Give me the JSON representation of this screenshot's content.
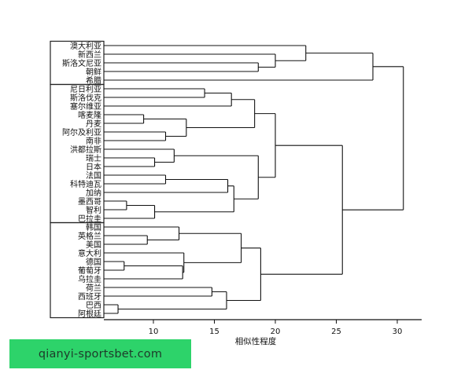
{
  "chart_data": {
    "type": "dendrogram",
    "xlabel": "相似性程度",
    "x_ticks": [
      10,
      15,
      20,
      25,
      30
    ],
    "xlim": [
      6,
      32
    ],
    "leaves": [
      "澳大利亚",
      "新西兰",
      "斯洛文尼亚",
      "朝鲜",
      "希腊",
      "尼日利亚",
      "斯洛伐克",
      "塞尔维亚",
      "喀麦隆",
      "丹麦",
      "阿尔及利亚",
      "南非",
      "洪都拉斯",
      "瑞士",
      "日本",
      "法国",
      "科特迪瓦",
      "加纳",
      "墨西哥",
      "智利",
      "巴拉圭",
      "韩国",
      "英格兰",
      "美国",
      "意大利",
      "德国",
      "葡萄牙",
      "乌拉圭",
      "荷兰",
      "西班牙",
      "巴西",
      "阿根廷"
    ],
    "merges": [
      {
        "id": "m1",
        "a": "墨西哥",
        "b": "智利",
        "height": 7.8
      },
      {
        "id": "m2",
        "a": "巴西",
        "b": "阿根廷",
        "height": 7.1
      },
      {
        "id": "m3",
        "a": "德国",
        "b": "葡萄牙",
        "height": 7.6
      },
      {
        "id": "m4",
        "a": "喀麦隆",
        "b": "丹麦",
        "height": 9.2
      },
      {
        "id": "m5",
        "a": "英格兰",
        "b": "美国",
        "height": 9.5
      },
      {
        "id": "m6",
        "a": "瑞士",
        "b": "日本",
        "height": 10.1
      },
      {
        "id": "m7",
        "a": "m1",
        "b": "巴拉圭",
        "height": 10.1
      },
      {
        "id": "m8",
        "a": "法国",
        "b": "科特迪瓦",
        "height": 11.0
      },
      {
        "id": "m9",
        "a": "阿尔及利亚",
        "b": "南非",
        "height": 11.0
      },
      {
        "id": "m10",
        "a": "m6",
        "b": "洪都拉斯",
        "height": 11.7
      },
      {
        "id": "m11",
        "a": "韩国",
        "b": "m5",
        "height": 12.1
      },
      {
        "id": "m12",
        "a": "m3",
        "b": "乌拉圭",
        "height": 12.4
      },
      {
        "id": "m13",
        "a": "意大利",
        "b": "m12",
        "height": 12.5
      },
      {
        "id": "m14",
        "a": "m4",
        "b": "m9",
        "height": 12.7
      },
      {
        "id": "m15",
        "a": "m8",
        "b": "加纳",
        "height": 16.1
      },
      {
        "id": "m16",
        "a": "尼日利亚",
        "b": "斯洛伐克",
        "height": 14.2
      },
      {
        "id": "m17",
        "a": "荷兰",
        "b": "西班牙",
        "height": 14.8
      },
      {
        "id": "m18",
        "a": "m17",
        "b": "m2",
        "height": 16.0
      },
      {
        "id": "m19",
        "a": "m16",
        "b": "塞尔维亚",
        "height": 16.4
      },
      {
        "id": "m20",
        "a": "m15",
        "b": "m7",
        "height": 16.6
      },
      {
        "id": "m21",
        "a": "m11",
        "b": "m13",
        "height": 17.2
      },
      {
        "id": "m22",
        "a": "m19",
        "b": "m14",
        "height": 18.3
      },
      {
        "id": "m23",
        "a": "m20",
        "b": "m10",
        "height": 18.6
      },
      {
        "id": "m24",
        "a": "m21",
        "b": "m18",
        "height": 18.8
      },
      {
        "id": "m25",
        "a": "斯洛文尼亚",
        "b": "朝鲜",
        "height": 18.6
      },
      {
        "id": "m26",
        "a": "m22",
        "b": "m23",
        "height": 20.0
      },
      {
        "id": "m27",
        "a": "m26",
        "b": "m24",
        "height": 25.5
      },
      {
        "id": "m28",
        "a": "新西兰",
        "b": "m25",
        "height": 20.0
      },
      {
        "id": "m29",
        "a": "澳大利亚",
        "b": "m28",
        "height": 22.5
      },
      {
        "id": "m30",
        "a": "m29",
        "b": "希腊",
        "height": 28.0
      },
      {
        "id": "m31",
        "a": "m30",
        "b": "m27",
        "height": 30.5
      }
    ],
    "groups": [
      {
        "name": "group-1",
        "first": "澳大利亚",
        "last": "希腊"
      },
      {
        "name": "group-2",
        "first": "尼日利亚",
        "last": "巴拉圭"
      },
      {
        "name": "group-3",
        "first": "韩国",
        "last": "阿根廷"
      }
    ]
  },
  "watermark": "qianyi-sportsbet.com"
}
